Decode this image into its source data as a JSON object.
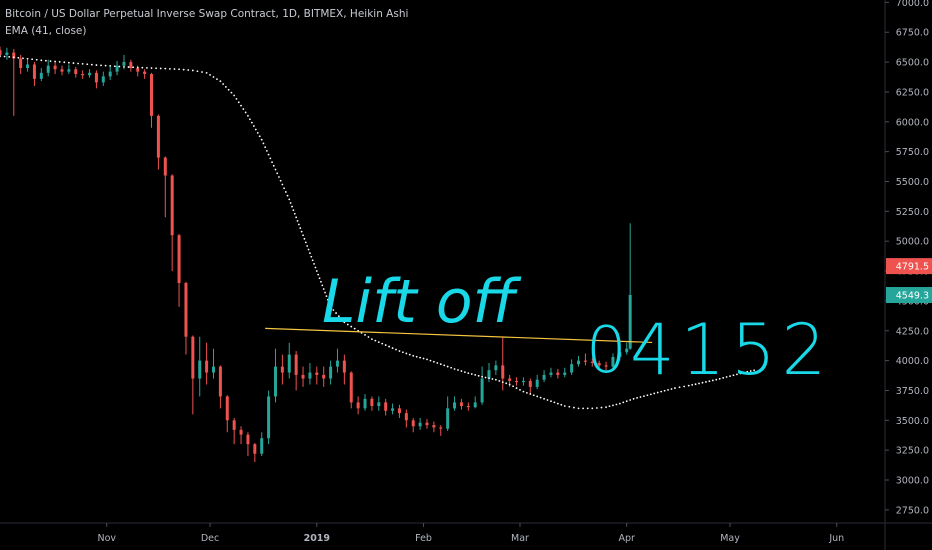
{
  "legend": {
    "title": "Bitcoin / US Dollar Perpetual Inverse Swap Contract, 1D, BITMEX, Heikin Ashi",
    "indicator": "EMA (41, close)"
  },
  "annotations": {
    "handwritten_text": "Lift off",
    "handwritten_number": "4152",
    "handwritten_circle": "0"
  },
  "price_tags": [
    {
      "value": "4791.5",
      "color": "#ef5350"
    },
    {
      "value": "4549.3",
      "color": "#26a69a"
    }
  ],
  "colors": {
    "background": "#000000",
    "up": "#26a69a",
    "down": "#ef5350",
    "ema": "#ffffff",
    "trendline": "#f5c542",
    "annotation": "#19d9e8"
  },
  "chart_data": {
    "type": "candlestick",
    "chart_style": "Heikin Ashi",
    "interval": "1D",
    "symbol": "Bitcoin / US Dollar Perpetual Inverse Swap Contract",
    "exchange": "BITMEX",
    "y_ticks": [
      "7000.0",
      "6750.0",
      "6500.0",
      "6250.0",
      "6000.0",
      "5750.0",
      "5500.0",
      "5250.0",
      "5000.0",
      "4750.0",
      "4500.0",
      "4250.0",
      "4000.0",
      "3750.0",
      "3500.0",
      "3250.0",
      "3000.0",
      "2750.0"
    ],
    "x_ticks": [
      "Nov",
      "Dec",
      "2019",
      "Feb",
      "Mar",
      "Apr",
      "May",
      "Jun"
    ],
    "ylim": [
      2640,
      7020
    ],
    "x_start": "2018-10-01",
    "x_end": "2019-06-15",
    "ema_period": 41,
    "ema_start": "2018-10-01",
    "ema": [
      6550,
      6540,
      6528,
      6515,
      6505,
      6495,
      6485,
      6475,
      6468,
      6460,
      6455,
      6450,
      6445,
      6440,
      6430,
      6410,
      6340,
      6220,
      6050,
      5850,
      5600,
      5350,
      5050,
      4750,
      4450,
      4320,
      4250,
      4180,
      4130,
      4080,
      4040,
      4010,
      3970,
      3930,
      3895,
      3865,
      3840,
      3800,
      3740,
      3700,
      3660,
      3620,
      3600,
      3600,
      3610,
      3640,
      3680,
      3710,
      3740,
      3770,
      3790,
      3815,
      3840,
      3870,
      3900,
      3925
    ],
    "ema_step_days": 4,
    "trendline": {
      "from": [
        "2018-12-17",
        4270
      ],
      "to": [
        "2019-04-02",
        4152
      ]
    },
    "candles": [
      [
        "2018-10-01",
        6600,
        6560,
        6630,
        6540
      ],
      [
        "2018-10-03",
        6560,
        6580,
        6620,
        6520
      ],
      [
        "2018-10-05",
        6580,
        6530,
        6610,
        6050
      ],
      [
        "2018-10-07",
        6530,
        6450,
        6560,
        6400
      ],
      [
        "2018-10-09",
        6450,
        6480,
        6520,
        6420
      ],
      [
        "2018-10-11",
        6480,
        6360,
        6500,
        6300
      ],
      [
        "2018-10-13",
        6360,
        6410,
        6450,
        6340
      ],
      [
        "2018-10-15",
        6410,
        6470,
        6520,
        6380
      ],
      [
        "2018-10-17",
        6470,
        6440,
        6510,
        6400
      ],
      [
        "2018-10-19",
        6440,
        6420,
        6470,
        6390
      ],
      [
        "2018-10-21",
        6420,
        6440,
        6480,
        6400
      ],
      [
        "2018-10-23",
        6440,
        6400,
        6460,
        6370
      ],
      [
        "2018-10-25",
        6400,
        6390,
        6430,
        6360
      ],
      [
        "2018-10-27",
        6390,
        6410,
        6440,
        6370
      ],
      [
        "2018-10-29",
        6410,
        6330,
        6430,
        6280
      ],
      [
        "2018-10-31",
        6330,
        6380,
        6420,
        6300
      ],
      [
        "2018-11-02",
        6380,
        6420,
        6470,
        6350
      ],
      [
        "2018-11-04",
        6420,
        6470,
        6510,
        6390
      ],
      [
        "2018-11-06",
        6470,
        6500,
        6560,
        6440
      ],
      [
        "2018-11-08",
        6500,
        6450,
        6520,
        6420
      ],
      [
        "2018-11-10",
        6450,
        6420,
        6470,
        6380
      ],
      [
        "2018-11-12",
        6420,
        6400,
        6440,
        6360
      ],
      [
        "2018-11-14",
        6400,
        6050,
        6410,
        5950
      ],
      [
        "2018-11-16",
        6050,
        5700,
        6060,
        5600
      ],
      [
        "2018-11-18",
        5700,
        5550,
        5710,
        5200
      ],
      [
        "2018-11-20",
        5550,
        5050,
        5560,
        4750
      ],
      [
        "2018-11-22",
        5050,
        4650,
        5060,
        4450
      ],
      [
        "2018-11-24",
        4650,
        4200,
        4660,
        4050
      ],
      [
        "2018-11-26",
        4200,
        3850,
        4210,
        3550
      ],
      [
        "2018-11-28",
        3850,
        4000,
        4200,
        3700
      ],
      [
        "2018-11-30",
        4000,
        3900,
        4150,
        3800
      ],
      [
        "2018-12-02",
        3900,
        3950,
        4100,
        3850
      ],
      [
        "2018-12-04",
        3950,
        3700,
        3960,
        3600
      ],
      [
        "2018-12-06",
        3700,
        3500,
        3710,
        3400
      ],
      [
        "2018-12-08",
        3500,
        3420,
        3520,
        3300
      ],
      [
        "2018-12-10",
        3420,
        3380,
        3450,
        3300
      ],
      [
        "2018-12-12",
        3380,
        3300,
        3400,
        3200
      ],
      [
        "2018-12-14",
        3300,
        3220,
        3310,
        3150
      ],
      [
        "2018-12-16",
        3220,
        3350,
        3400,
        3200
      ],
      [
        "2018-12-18",
        3350,
        3700,
        3750,
        3300
      ],
      [
        "2018-12-20",
        3700,
        3950,
        4100,
        3650
      ],
      [
        "2018-12-22",
        3950,
        3900,
        4050,
        3800
      ],
      [
        "2018-12-24",
        3900,
        4050,
        4150,
        3850
      ],
      [
        "2018-12-26",
        4050,
        3880,
        4080,
        3750
      ],
      [
        "2018-12-28",
        3880,
        3850,
        3950,
        3780
      ],
      [
        "2018-12-30",
        3850,
        3900,
        3980,
        3800
      ],
      [
        "2019-01-01",
        3900,
        3880,
        3950,
        3800
      ],
      [
        "2019-01-03",
        3880,
        3850,
        3950,
        3780
      ],
      [
        "2019-01-05",
        3850,
        3950,
        4000,
        3800
      ],
      [
        "2019-01-07",
        3950,
        4000,
        4100,
        3900
      ],
      [
        "2019-01-09",
        4000,
        3900,
        4050,
        3800
      ],
      [
        "2019-01-11",
        3900,
        3650,
        3910,
        3600
      ],
      [
        "2019-01-13",
        3650,
        3600,
        3700,
        3550
      ],
      [
        "2019-01-15",
        3600,
        3680,
        3720,
        3580
      ],
      [
        "2019-01-17",
        3680,
        3620,
        3700,
        3580
      ],
      [
        "2019-01-19",
        3620,
        3650,
        3700,
        3580
      ],
      [
        "2019-01-21",
        3650,
        3580,
        3680,
        3540
      ],
      [
        "2019-01-23",
        3580,
        3600,
        3640,
        3550
      ],
      [
        "2019-01-25",
        3600,
        3560,
        3630,
        3520
      ],
      [
        "2019-01-27",
        3560,
        3500,
        3590,
        3440
      ],
      [
        "2019-01-29",
        3500,
        3450,
        3520,
        3400
      ],
      [
        "2019-01-31",
        3450,
        3480,
        3520,
        3420
      ],
      [
        "2019-02-02",
        3480,
        3460,
        3510,
        3430
      ],
      [
        "2019-02-04",
        3460,
        3440,
        3490,
        3400
      ],
      [
        "2019-02-06",
        3440,
        3430,
        3460,
        3370
      ],
      [
        "2019-02-08",
        3430,
        3600,
        3700,
        3410
      ],
      [
        "2019-02-10",
        3600,
        3650,
        3700,
        3580
      ],
      [
        "2019-02-12",
        3650,
        3620,
        3680,
        3590
      ],
      [
        "2019-02-14",
        3620,
        3610,
        3650,
        3580
      ],
      [
        "2019-02-16",
        3610,
        3650,
        3700,
        3600
      ],
      [
        "2019-02-18",
        3650,
        3850,
        3950,
        3630
      ],
      [
        "2019-02-20",
        3850,
        3920,
        3980,
        3820
      ],
      [
        "2019-02-22",
        3920,
        3960,
        4000,
        3880
      ],
      [
        "2019-02-24",
        3960,
        3850,
        4200,
        3750
      ],
      [
        "2019-02-26",
        3850,
        3830,
        3880,
        3780
      ],
      [
        "2019-02-28",
        3830,
        3820,
        3860,
        3790
      ],
      [
        "2019-03-02",
        3820,
        3830,
        3860,
        3790
      ],
      [
        "2019-03-04",
        3830,
        3780,
        3850,
        3720
      ],
      [
        "2019-03-06",
        3780,
        3840,
        3880,
        3760
      ],
      [
        "2019-03-08",
        3840,
        3880,
        3920,
        3820
      ],
      [
        "2019-03-10",
        3880,
        3900,
        3940,
        3860
      ],
      [
        "2019-03-12",
        3900,
        3880,
        3930,
        3850
      ],
      [
        "2019-03-14",
        3880,
        3900,
        3940,
        3860
      ],
      [
        "2019-03-16",
        3900,
        3970,
        4010,
        3880
      ],
      [
        "2019-03-18",
        3970,
        4000,
        4040,
        3950
      ],
      [
        "2019-03-20",
        4000,
        3990,
        4060,
        3960
      ],
      [
        "2019-03-22",
        3990,
        3980,
        4020,
        3950
      ],
      [
        "2019-03-24",
        3980,
        3960,
        4000,
        3930
      ],
      [
        "2019-03-26",
        3960,
        3950,
        3990,
        3920
      ],
      [
        "2019-03-28",
        3950,
        4030,
        4060,
        3930
      ],
      [
        "2019-03-30",
        4030,
        4070,
        4100,
        4000
      ],
      [
        "2019-04-01",
        4070,
        4100,
        4150,
        4050
      ],
      [
        "2019-04-02",
        4100,
        4550,
        5150,
        4090
      ]
    ]
  }
}
